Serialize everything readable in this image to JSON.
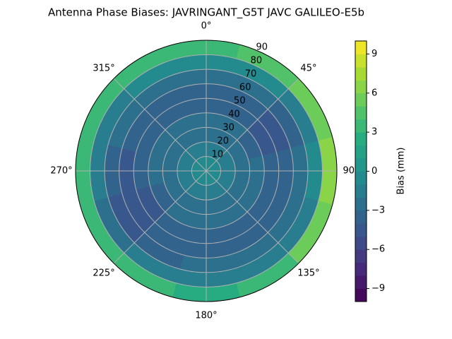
{
  "chart_data": {
    "type": "polar_contour",
    "title": "Antenna Phase Biases: JAVRINGANT_G5T  JAVC GALILEO-E5b",
    "theta": [
      0,
      30,
      60,
      90,
      120,
      150,
      180,
      210,
      240,
      270,
      300,
      330
    ],
    "r": [
      5,
      15,
      25,
      35,
      45,
      55,
      65,
      75,
      85
    ],
    "values": [
      [
        -1,
        -1,
        -1,
        -1,
        -1,
        -1,
        -1,
        -1,
        -1,
        -1,
        -1,
        -1
      ],
      [
        -1.5,
        -1.5,
        -1.5,
        -1.5,
        -1.5,
        -1.5,
        -1.5,
        -1.5,
        -1.5,
        -1.5,
        -1.5,
        -1.5
      ],
      [
        -2.5,
        -2.5,
        -2.5,
        -2.5,
        -2.5,
        -2.5,
        -2.5,
        -2.5,
        -2.5,
        -2.5,
        -2.5,
        -2.5
      ],
      [
        -3,
        -3,
        -3.5,
        -3,
        -3,
        -3,
        -3,
        -3,
        -3.5,
        -3,
        -3,
        -3
      ],
      [
        -3.5,
        -3.5,
        -4.5,
        -4,
        -3.5,
        -3.5,
        -3.5,
        -3.5,
        -4.5,
        -4,
        -3.5,
        -3.5
      ],
      [
        -3.5,
        -4,
        -5,
        -4,
        -3.5,
        -3.5,
        -3.5,
        -4,
        -5,
        -4.5,
        -3.5,
        -3.5
      ],
      [
        -3,
        -3,
        -4,
        -3,
        -3,
        -3,
        -3,
        -3.5,
        -5,
        -3.5,
        -3,
        -3
      ],
      [
        -1,
        -1,
        -1.5,
        -1,
        -1.5,
        -2,
        -1.5,
        -2,
        -3,
        -2,
        -1.5,
        -1
      ],
      [
        3,
        4,
        5,
        6,
        5,
        3,
        2,
        3,
        3,
        3,
        3,
        3
      ]
    ],
    "rlim": [
      0,
      90
    ],
    "rticks": [
      10,
      20,
      30,
      40,
      50,
      60,
      70,
      80,
      90
    ],
    "thetaticks": [
      {
        "value": 0,
        "label": "0°"
      },
      {
        "value": 45,
        "label": "45°"
      },
      {
        "value": 90,
        "label": "90°"
      },
      {
        "value": 135,
        "label": "135°"
      },
      {
        "value": 180,
        "label": "180°"
      },
      {
        "value": 225,
        "label": "225°"
      },
      {
        "value": 270,
        "label": "270°"
      },
      {
        "value": 315,
        "label": "315°"
      }
    ],
    "cmap": "viridis",
    "clim": [
      -10,
      10
    ],
    "level_step": 1,
    "colorbar_label": "Bias (mm)",
    "cticks": [
      {
        "value": -9,
        "label": "−9"
      },
      {
        "value": -6,
        "label": "−6"
      },
      {
        "value": -3,
        "label": "−3"
      },
      0,
      3,
      6,
      9
    ],
    "grid": true
  }
}
